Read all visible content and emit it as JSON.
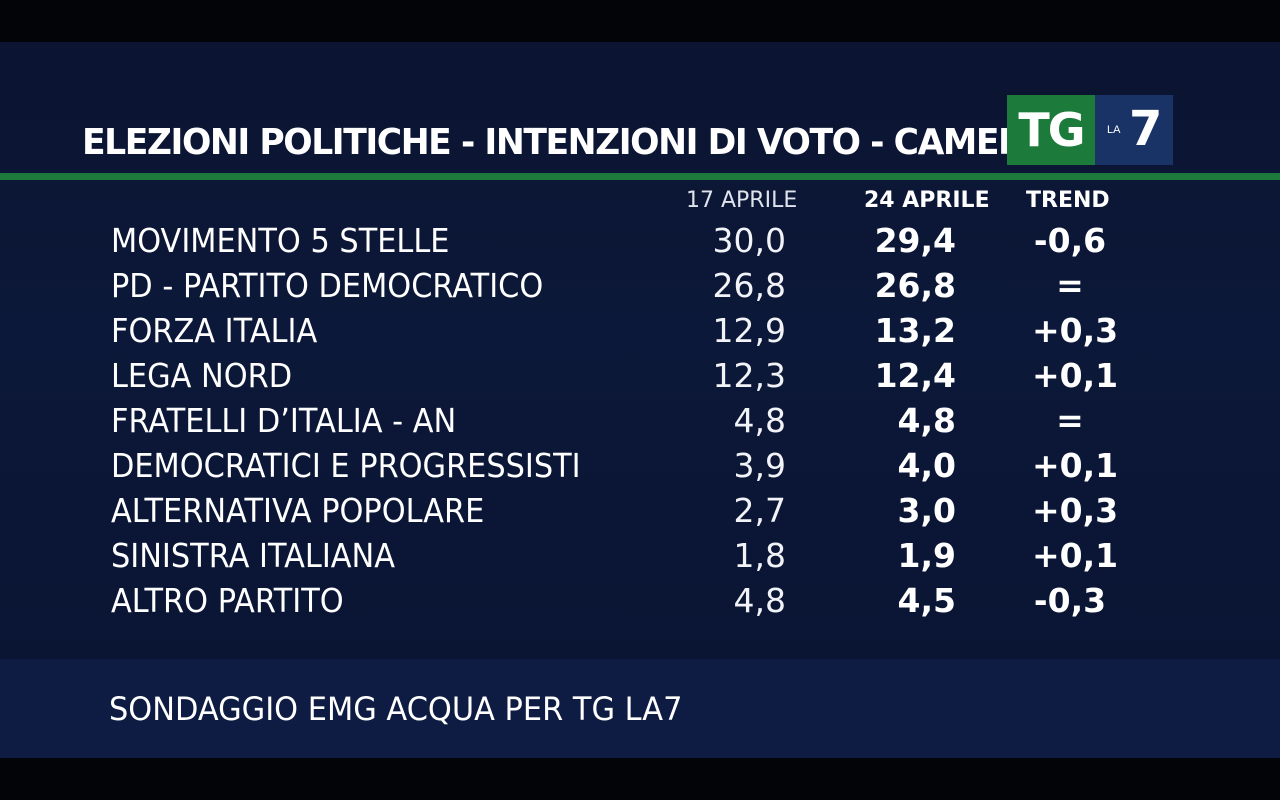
{
  "title": "ELEZIONI POLITICHE - INTENZIONI DI VOTO - CAMERA",
  "logo": {
    "tg": "TG",
    "la": "LA",
    "seven": "7"
  },
  "columns": {
    "prev": "17 APRILE",
    "curr": "24 APRILE",
    "trend": "TREND"
  },
  "rows": [
    {
      "party": "MOVIMENTO 5 STELLE",
      "prev": "30,0",
      "curr": "29,4",
      "trend": "-0,6"
    },
    {
      "party": "PD - PARTITO DEMOCRATICO",
      "prev": "26,8",
      "curr": "26,8",
      "trend": "="
    },
    {
      "party": "FORZA ITALIA",
      "prev": "12,9",
      "curr": "13,2",
      "trend": "+0,3"
    },
    {
      "party": "LEGA NORD",
      "prev": "12,3",
      "curr": "12,4",
      "trend": "+0,1"
    },
    {
      "party": "FRATELLI D’ITALIA - AN",
      "prev": "4,8",
      "curr": "4,8",
      "trend": "="
    },
    {
      "party": "DEMOCRATICI E PROGRESSISTI",
      "prev": "3,9",
      "curr": "4,0",
      "trend": "+0,1"
    },
    {
      "party": "ALTERNATIVA POPOLARE",
      "prev": "2,7",
      "curr": "3,0",
      "trend": "+0,3"
    },
    {
      "party": "SINISTRA ITALIANA",
      "prev": "1,8",
      "curr": "1,9",
      "trend": "+0,1"
    },
    {
      "party": "ALTRO PARTITO",
      "prev": "4,8",
      "curr": "4,5",
      "trend": "-0,3"
    }
  ],
  "footer": "SONDAGGIO EMG ACQUA PER TG LA7",
  "colors": {
    "accent_green": "#1d7a3c",
    "background": "#0c1839",
    "logo_blue": "#1a3366"
  }
}
